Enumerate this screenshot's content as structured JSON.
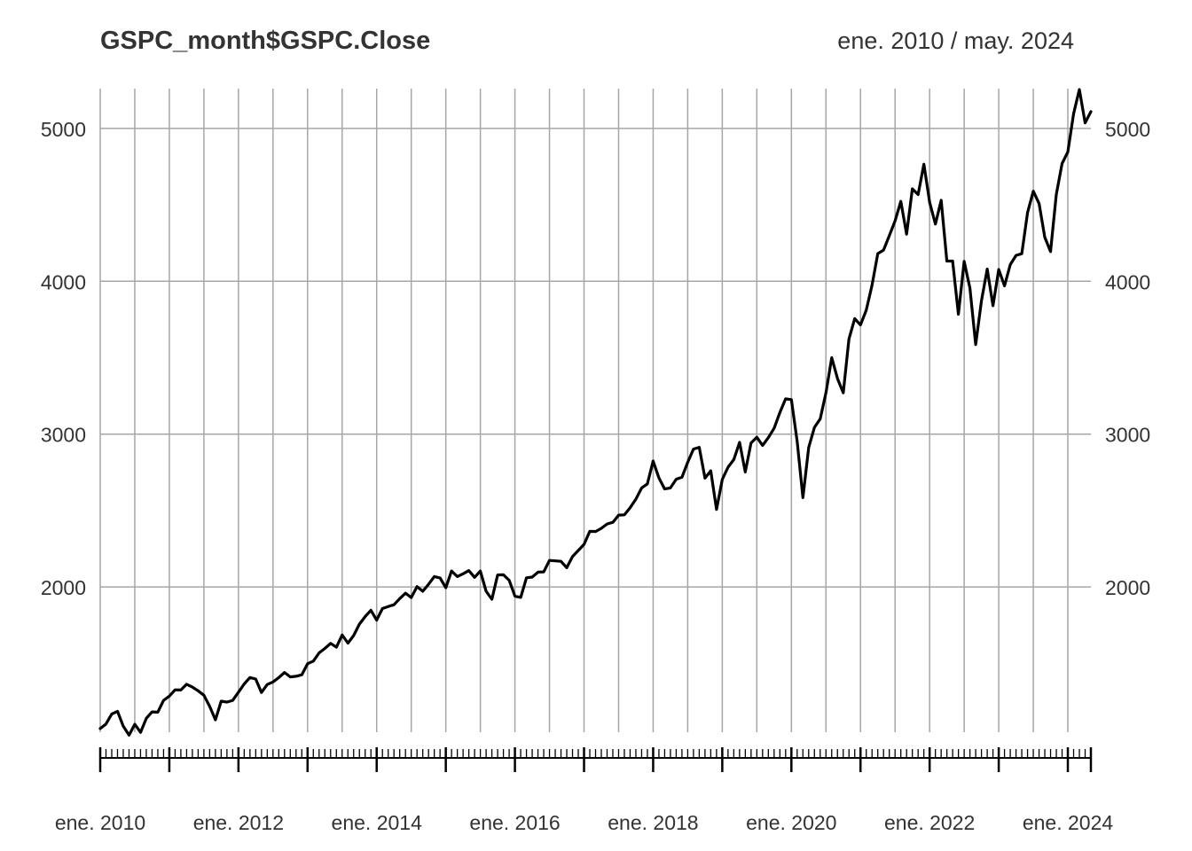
{
  "chart_data": {
    "type": "line",
    "title": "GSPC_month$GSPC.Close",
    "date_range": "ene. 2010 / may. 2024",
    "xlabel": "",
    "ylabel": "",
    "x_start": "2010-01",
    "x_end": "2024-05",
    "ylim": [
      1050,
      5260
    ],
    "y_ticks": [
      2000,
      3000,
      4000,
      5000
    ],
    "x_ticks": [
      "ene. 2010",
      "ene. 2012",
      "ene. 2014",
      "ene. 2016",
      "ene. 2018",
      "ene. 2020",
      "ene. 2022",
      "ene. 2024"
    ],
    "grid": true,
    "line_color": "#000000",
    "grid_color": "#a6a6a6",
    "series": [
      {
        "values": [
          1074,
          1104,
          1169,
          1187,
          1089,
          1031,
          1102,
          1049,
          1141,
          1183,
          1181,
          1258,
          1286,
          1327,
          1326,
          1364,
          1345,
          1321,
          1292,
          1219,
          1131,
          1253,
          1247,
          1258,
          1312,
          1366,
          1408,
          1398,
          1310,
          1362,
          1379,
          1407,
          1441,
          1412,
          1416,
          1426,
          1498,
          1515,
          1569,
          1598,
          1631,
          1606,
          1686,
          1633,
          1682,
          1757,
          1806,
          1848,
          1783,
          1859,
          1872,
          1884,
          1924,
          1960,
          1931,
          2003,
          1972,
          2018,
          2068,
          2059,
          1995,
          2105,
          2068,
          2086,
          2107,
          2063,
          2104,
          1972,
          1920,
          2079,
          2080,
          2044,
          1940,
          1932,
          2060,
          2065,
          2097,
          2099,
          2174,
          2171,
          2168,
          2126,
          2199,
          2239,
          2279,
          2364,
          2363,
          2384,
          2412,
          2423,
          2470,
          2472,
          2519,
          2575,
          2648,
          2674,
          2824,
          2714,
          2641,
          2648,
          2705,
          2718,
          2816,
          2902,
          2914,
          2712,
          2760,
          2507,
          2704,
          2784,
          2834,
          2946,
          2752,
          2942,
          2980,
          2926,
          2977,
          3038,
          3141,
          3231,
          3226,
          2954,
          2585,
          2912,
          3044,
          3100,
          3271,
          3500,
          3363,
          3270,
          3622,
          3756,
          3714,
          3811,
          3973,
          4181,
          4204,
          4298,
          4395,
          4523,
          4308,
          4605,
          4567,
          4766,
          4516,
          4374,
          4530,
          4132,
          4132,
          3785,
          4130,
          3955,
          3586,
          3872,
          4080,
          3840,
          4077,
          3970,
          4109,
          4169,
          4180,
          4450,
          4589,
          4508,
          4288,
          4194,
          4568,
          4770,
          4846,
          5096,
          5254,
          5036,
          5110
        ]
      }
    ]
  }
}
